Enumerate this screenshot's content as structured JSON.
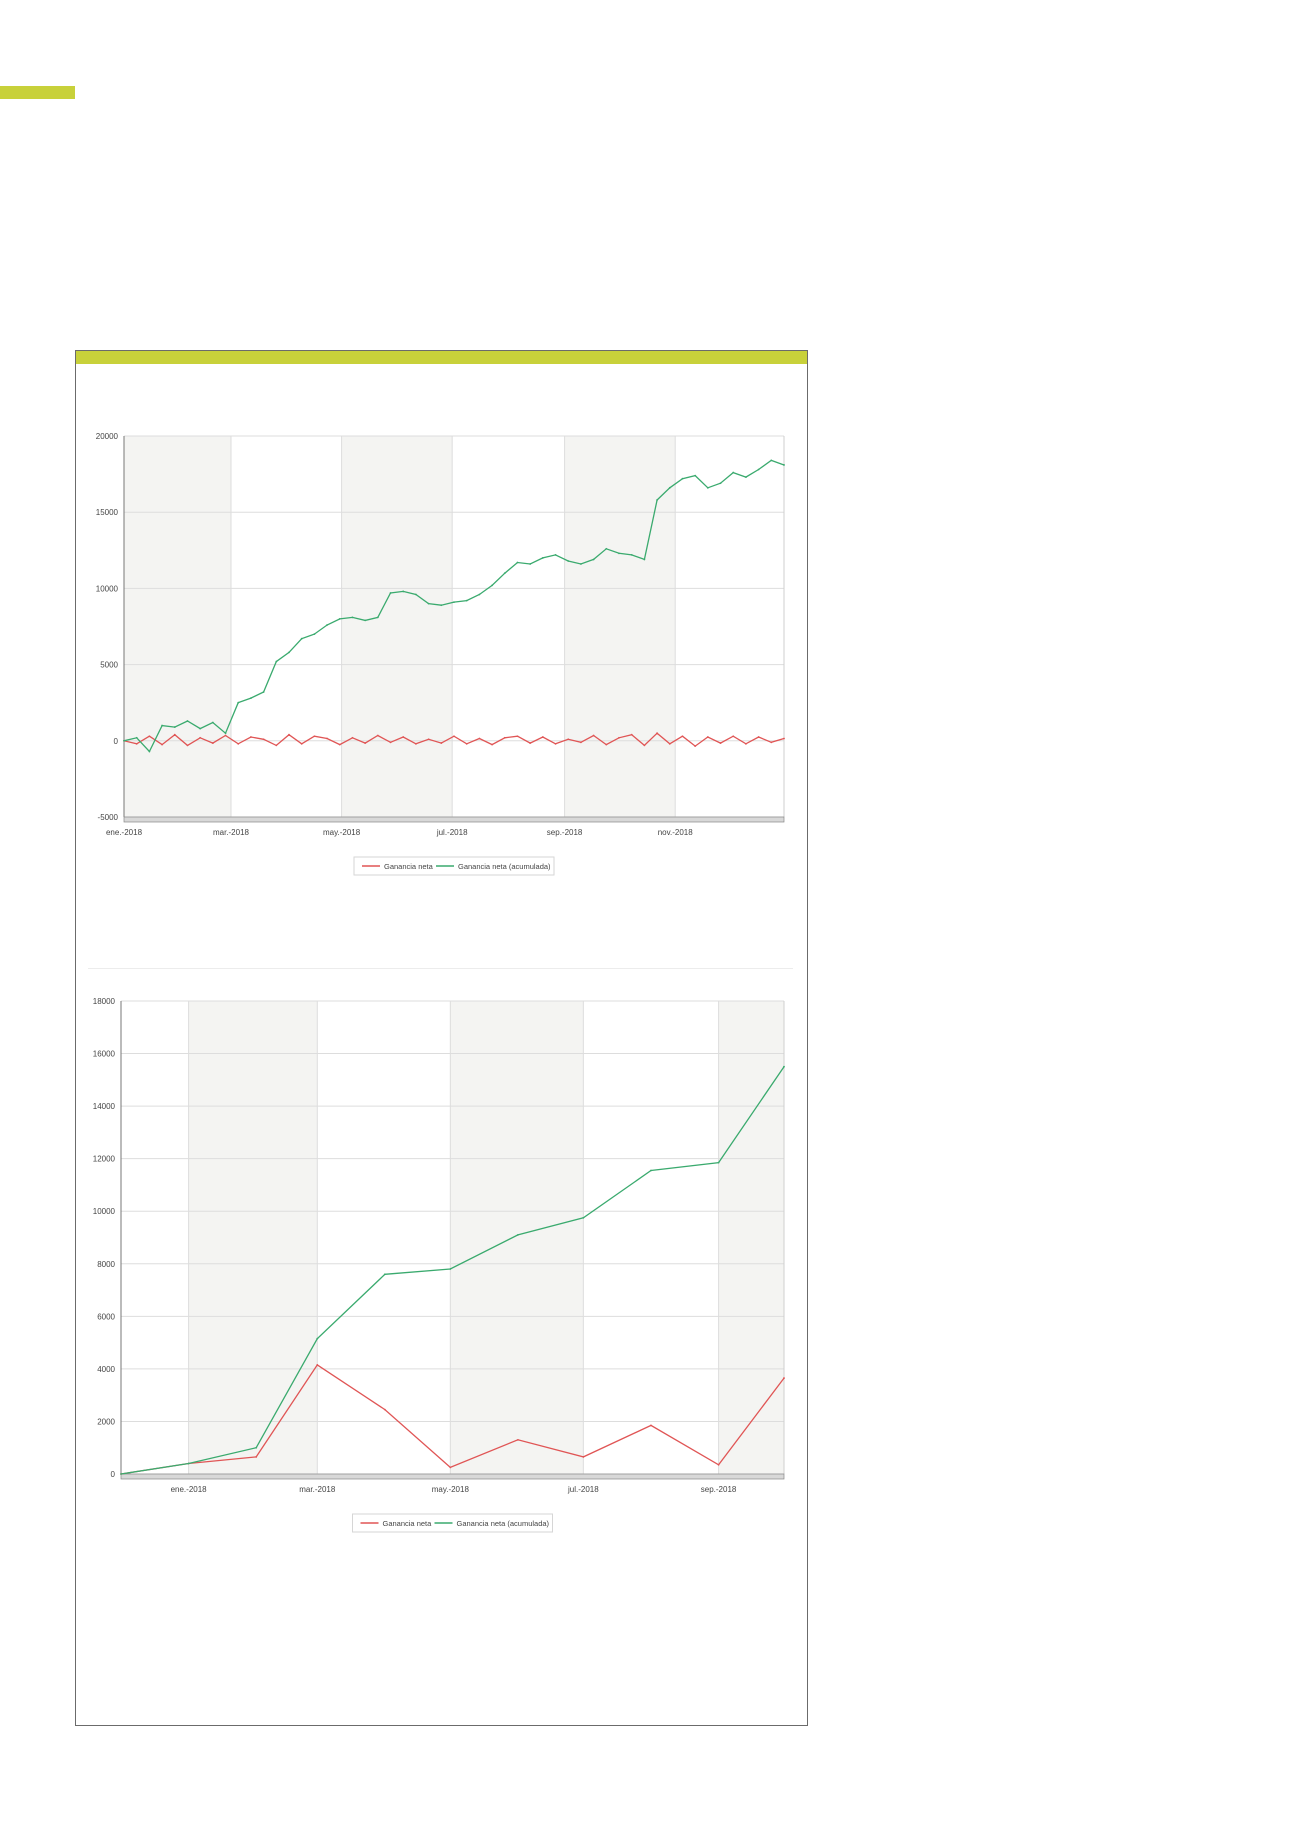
{
  "colors": {
    "accent_bar": "#c8d13a",
    "series_net": "#e05555",
    "series_cumulative": "#3aaa6e",
    "band_fill": "#f4f4f2",
    "grid": "#dddddd"
  },
  "chart_data": [
    {
      "type": "line",
      "granularity": "daily",
      "title": "",
      "xlabel": "",
      "ylabel": "",
      "ylim": [
        -5000,
        20000
      ],
      "yticks": [
        20000,
        15000,
        10000,
        5000,
        0,
        -5000
      ],
      "xlim": [
        "2018-01-01",
        "2018-12-31"
      ],
      "xticks": [
        {
          "date": "2018-01-01",
          "label": "ene.-2018"
        },
        {
          "date": "2018-03-01",
          "label": "mar.-2018"
        },
        {
          "date": "2018-05-01",
          "label": "may.-2018"
        },
        {
          "date": "2018-07-01",
          "label": "jul.-2018"
        },
        {
          "date": "2018-09-01",
          "label": "sep.-2018"
        },
        {
          "date": "2018-11-01",
          "label": "nov.-2018"
        }
      ],
      "shaded_bands": [
        [
          "2018-01-01",
          "2018-03-01"
        ],
        [
          "2018-05-01",
          "2018-07-01"
        ],
        [
          "2018-09-01",
          "2018-11-01"
        ]
      ],
      "grid": true,
      "legend_position": "bottom",
      "series": [
        {
          "name": "Ganancia neta",
          "color": "#e05555",
          "x": [
            "2018-01-01",
            "2018-01-08",
            "2018-01-15",
            "2018-01-22",
            "2018-01-29",
            "2018-02-05",
            "2018-02-12",
            "2018-02-19",
            "2018-02-26",
            "2018-03-05",
            "2018-03-12",
            "2018-03-19",
            "2018-03-26",
            "2018-04-02",
            "2018-04-09",
            "2018-04-16",
            "2018-04-23",
            "2018-04-30",
            "2018-05-07",
            "2018-05-14",
            "2018-05-21",
            "2018-05-28",
            "2018-06-04",
            "2018-06-11",
            "2018-06-18",
            "2018-06-25",
            "2018-07-02",
            "2018-07-09",
            "2018-07-16",
            "2018-07-23",
            "2018-07-30",
            "2018-08-06",
            "2018-08-13",
            "2018-08-20",
            "2018-08-27",
            "2018-09-03",
            "2018-09-10",
            "2018-09-17",
            "2018-09-24",
            "2018-10-01",
            "2018-10-08",
            "2018-10-15",
            "2018-10-22",
            "2018-10-29",
            "2018-11-05",
            "2018-11-12",
            "2018-11-19",
            "2018-11-26",
            "2018-12-03",
            "2018-12-10",
            "2018-12-17",
            "2018-12-24",
            "2018-12-31"
          ],
          "values": [
            0,
            -200,
            300,
            -250,
            400,
            -300,
            200,
            -150,
            350,
            -200,
            250,
            100,
            -300,
            400,
            -200,
            300,
            150,
            -250,
            200,
            -150,
            350,
            -100,
            250,
            -200,
            100,
            -150,
            300,
            -200,
            150,
            -250,
            200,
            300,
            -150,
            250,
            -200,
            100,
            -100,
            350,
            -250,
            200,
            400,
            -300,
            500,
            -200,
            300,
            -350,
            250,
            -150,
            300,
            -200,
            250,
            -100,
            150
          ]
        },
        {
          "name": "Ganancia neta (acumulada)",
          "color": "#3aaa6e",
          "x": [
            "2018-01-01",
            "2018-01-08",
            "2018-01-15",
            "2018-01-22",
            "2018-01-29",
            "2018-02-05",
            "2018-02-12",
            "2018-02-19",
            "2018-02-26",
            "2018-03-05",
            "2018-03-12",
            "2018-03-19",
            "2018-03-26",
            "2018-04-02",
            "2018-04-09",
            "2018-04-16",
            "2018-04-23",
            "2018-04-30",
            "2018-05-07",
            "2018-05-14",
            "2018-05-21",
            "2018-05-28",
            "2018-06-04",
            "2018-06-11",
            "2018-06-18",
            "2018-06-25",
            "2018-07-02",
            "2018-07-09",
            "2018-07-16",
            "2018-07-23",
            "2018-07-30",
            "2018-08-06",
            "2018-08-13",
            "2018-08-20",
            "2018-08-27",
            "2018-09-03",
            "2018-09-10",
            "2018-09-17",
            "2018-09-24",
            "2018-10-01",
            "2018-10-08",
            "2018-10-15",
            "2018-10-22",
            "2018-10-29",
            "2018-11-05",
            "2018-11-12",
            "2018-11-19",
            "2018-11-26",
            "2018-12-03",
            "2018-12-10",
            "2018-12-17",
            "2018-12-24",
            "2018-12-31"
          ],
          "values": [
            0,
            200,
            -700,
            1000,
            900,
            1300,
            800,
            1200,
            500,
            2500,
            2800,
            3200,
            5200,
            5800,
            6700,
            7000,
            7600,
            8000,
            8100,
            7900,
            8100,
            9700,
            9800,
            9600,
            9000,
            8900,
            9100,
            9200,
            9600,
            10200,
            11000,
            11700,
            11600,
            12000,
            12200,
            11800,
            11600,
            11900,
            12600,
            12300,
            12200,
            11900,
            15800,
            16600,
            17200,
            17400,
            16600,
            16900,
            17600,
            17300,
            17800,
            18400,
            18100
          ]
        }
      ]
    },
    {
      "type": "line",
      "granularity": "monthly",
      "title": "",
      "xlabel": "",
      "ylabel": "",
      "ylim": [
        0,
        18000
      ],
      "yticks": [
        18000,
        16000,
        14000,
        12000,
        10000,
        8000,
        6000,
        4000,
        2000,
        0
      ],
      "xlim": [
        "2017-12-01",
        "2018-10-01"
      ],
      "xticks": [
        {
          "date": "2018-01-01",
          "label": "ene.-2018"
        },
        {
          "date": "2018-03-01",
          "label": "mar.-2018"
        },
        {
          "date": "2018-05-01",
          "label": "may.-2018"
        },
        {
          "date": "2018-07-01",
          "label": "jul.-2018"
        },
        {
          "date": "2018-09-01",
          "label": "sep.-2018"
        }
      ],
      "shaded_bands": [
        [
          "2018-01-01",
          "2018-03-01"
        ],
        [
          "2018-05-01",
          "2018-07-01"
        ],
        [
          "2018-09-01",
          "2018-10-01"
        ]
      ],
      "grid": true,
      "legend_position": "bottom",
      "series": [
        {
          "name": "Ganancia neta",
          "color": "#e05555",
          "x": [
            "2017-12-01",
            "2018-01-01",
            "2018-02-01",
            "2018-03-01",
            "2018-04-01",
            "2018-05-01",
            "2018-06-01",
            "2018-07-01",
            "2018-08-01",
            "2018-09-01",
            "2018-10-01"
          ],
          "values": [
            0,
            400,
            650,
            4150,
            2450,
            250,
            1300,
            650,
            1850,
            350,
            3650
          ]
        },
        {
          "name": "Ganancia neta (acumulada)",
          "color": "#3aaa6e",
          "x": [
            "2017-12-01",
            "2018-01-01",
            "2018-02-01",
            "2018-03-01",
            "2018-04-01",
            "2018-05-01",
            "2018-06-01",
            "2018-07-01",
            "2018-08-01",
            "2018-09-01",
            "2018-10-01"
          ],
          "values": [
            0,
            400,
            1000,
            5150,
            7600,
            7800,
            9100,
            9750,
            11550,
            11850,
            15500
          ]
        }
      ]
    }
  ]
}
